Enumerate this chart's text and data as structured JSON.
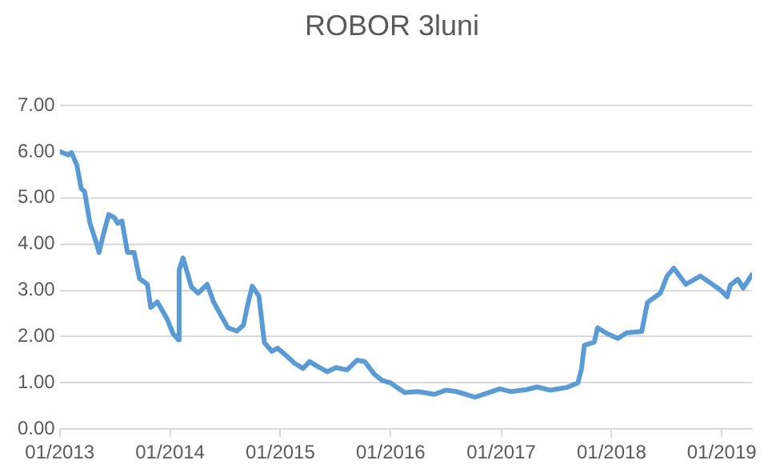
{
  "chart_data": {
    "type": "line",
    "title": "ROBOR 3luni",
    "x": [
      "2013-01-02",
      "2013-01-30",
      "2013-02-10",
      "2013-02-28",
      "2013-03-14",
      "2013-03-25",
      "2013-04-12",
      "2013-05-01",
      "2013-05-12",
      "2013-05-26",
      "2013-06-13",
      "2013-07-02",
      "2013-07-13",
      "2013-07-27",
      "2013-08-14",
      "2013-09-05",
      "2013-09-23",
      "2013-10-19",
      "2013-10-30",
      "2013-11-21",
      "2013-12-13",
      "2013-12-24",
      "2014-01-12",
      "2014-01-30",
      "2014-02-01",
      "2014-02-14",
      "2014-02-28",
      "2014-03-14",
      "2014-04-05",
      "2014-05-05",
      "2014-05-26",
      "2014-06-21",
      "2014-07-13",
      "2014-08-11",
      "2014-09-02",
      "2014-09-16",
      "2014-10-01",
      "2014-10-23",
      "2014-11-10",
      "2014-12-05",
      "2014-12-24",
      "2015-01-23",
      "2015-02-17",
      "2015-03-18",
      "2015-04-09",
      "2015-05-01",
      "2015-06-06",
      "2015-07-05",
      "2015-08-11",
      "2015-09-13",
      "2015-10-08",
      "2015-11-10",
      "2015-12-05",
      "2016-01-02",
      "2016-01-23",
      "2016-02-17",
      "2016-04-01",
      "2016-05-26",
      "2016-07-02",
      "2016-08-08",
      "2016-10-08",
      "2016-12-01",
      "2016-12-28",
      "2017-02-03",
      "2017-03-25",
      "2017-05-01",
      "2017-06-13",
      "2017-08-08",
      "2017-09-13",
      "2017-09-25",
      "2017-10-04",
      "2017-11-06",
      "2017-11-17",
      "2017-12-20",
      "2018-01-23",
      "2018-02-21",
      "2018-04-12",
      "2018-05-01",
      "2018-06-13",
      "2018-07-05",
      "2018-07-27",
      "2018-09-05",
      "2018-10-23",
      "2018-11-21",
      "2018-12-28",
      "2019-01-20",
      "2019-01-30",
      "2019-02-24",
      "2019-03-14",
      "2019-04-12"
    ],
    "series": [
      {
        "color": "#5b9bd5",
        "values": [
          6.0,
          5.93,
          5.98,
          5.7,
          5.2,
          5.14,
          4.45,
          4.07,
          3.82,
          4.2,
          4.64,
          4.57,
          4.45,
          4.5,
          3.82,
          3.82,
          3.25,
          3.13,
          2.63,
          2.75,
          2.5,
          2.37,
          2.06,
          1.93,
          3.44,
          3.7,
          3.38,
          3.07,
          2.94,
          3.13,
          2.75,
          2.44,
          2.19,
          2.12,
          2.25,
          2.69,
          3.09,
          2.88,
          1.87,
          1.68,
          1.75,
          1.58,
          1.43,
          1.31,
          1.46,
          1.37,
          1.24,
          1.33,
          1.28,
          1.49,
          1.46,
          1.18,
          1.05,
          1.0,
          0.9,
          0.79,
          0.81,
          0.75,
          0.84,
          0.81,
          0.69,
          0.81,
          0.87,
          0.81,
          0.85,
          0.91,
          0.84,
          0.9,
          1.0,
          1.31,
          1.81,
          1.88,
          2.19,
          2.06,
          1.96,
          2.08,
          2.11,
          2.74,
          2.94,
          3.31,
          3.48,
          3.13,
          3.31,
          3.18,
          3.01,
          2.86,
          3.11,
          3.24,
          3.05,
          3.34
        ]
      }
    ],
    "xlim": [
      "2013-01-02",
      "2019-04-12"
    ],
    "xticks": [
      {
        "value": "2013-01-02",
        "label": "01/2013"
      },
      {
        "value": "2014-01-02",
        "label": "01/2014"
      },
      {
        "value": "2015-01-02",
        "label": "01/2015"
      },
      {
        "value": "2016-01-02",
        "label": "01/2016"
      },
      {
        "value": "2017-01-02",
        "label": "01/2017"
      },
      {
        "value": "2018-01-02",
        "label": "01/2018"
      },
      {
        "value": "2019-01-02",
        "label": "01/2019"
      }
    ],
    "ylim": [
      0,
      7
    ],
    "yticks": [
      {
        "value": 0,
        "label": "0.00"
      },
      {
        "value": 1,
        "label": "1.00"
      },
      {
        "value": 2,
        "label": "2.00"
      },
      {
        "value": 3,
        "label": "3.00"
      },
      {
        "value": 4,
        "label": "4.00"
      },
      {
        "value": 5,
        "label": "5.00"
      },
      {
        "value": 6,
        "label": "6.00"
      },
      {
        "value": 7,
        "label": "7.00"
      }
    ],
    "grid": "y",
    "legend": false,
    "marker": "none",
    "line_style": "solid"
  }
}
